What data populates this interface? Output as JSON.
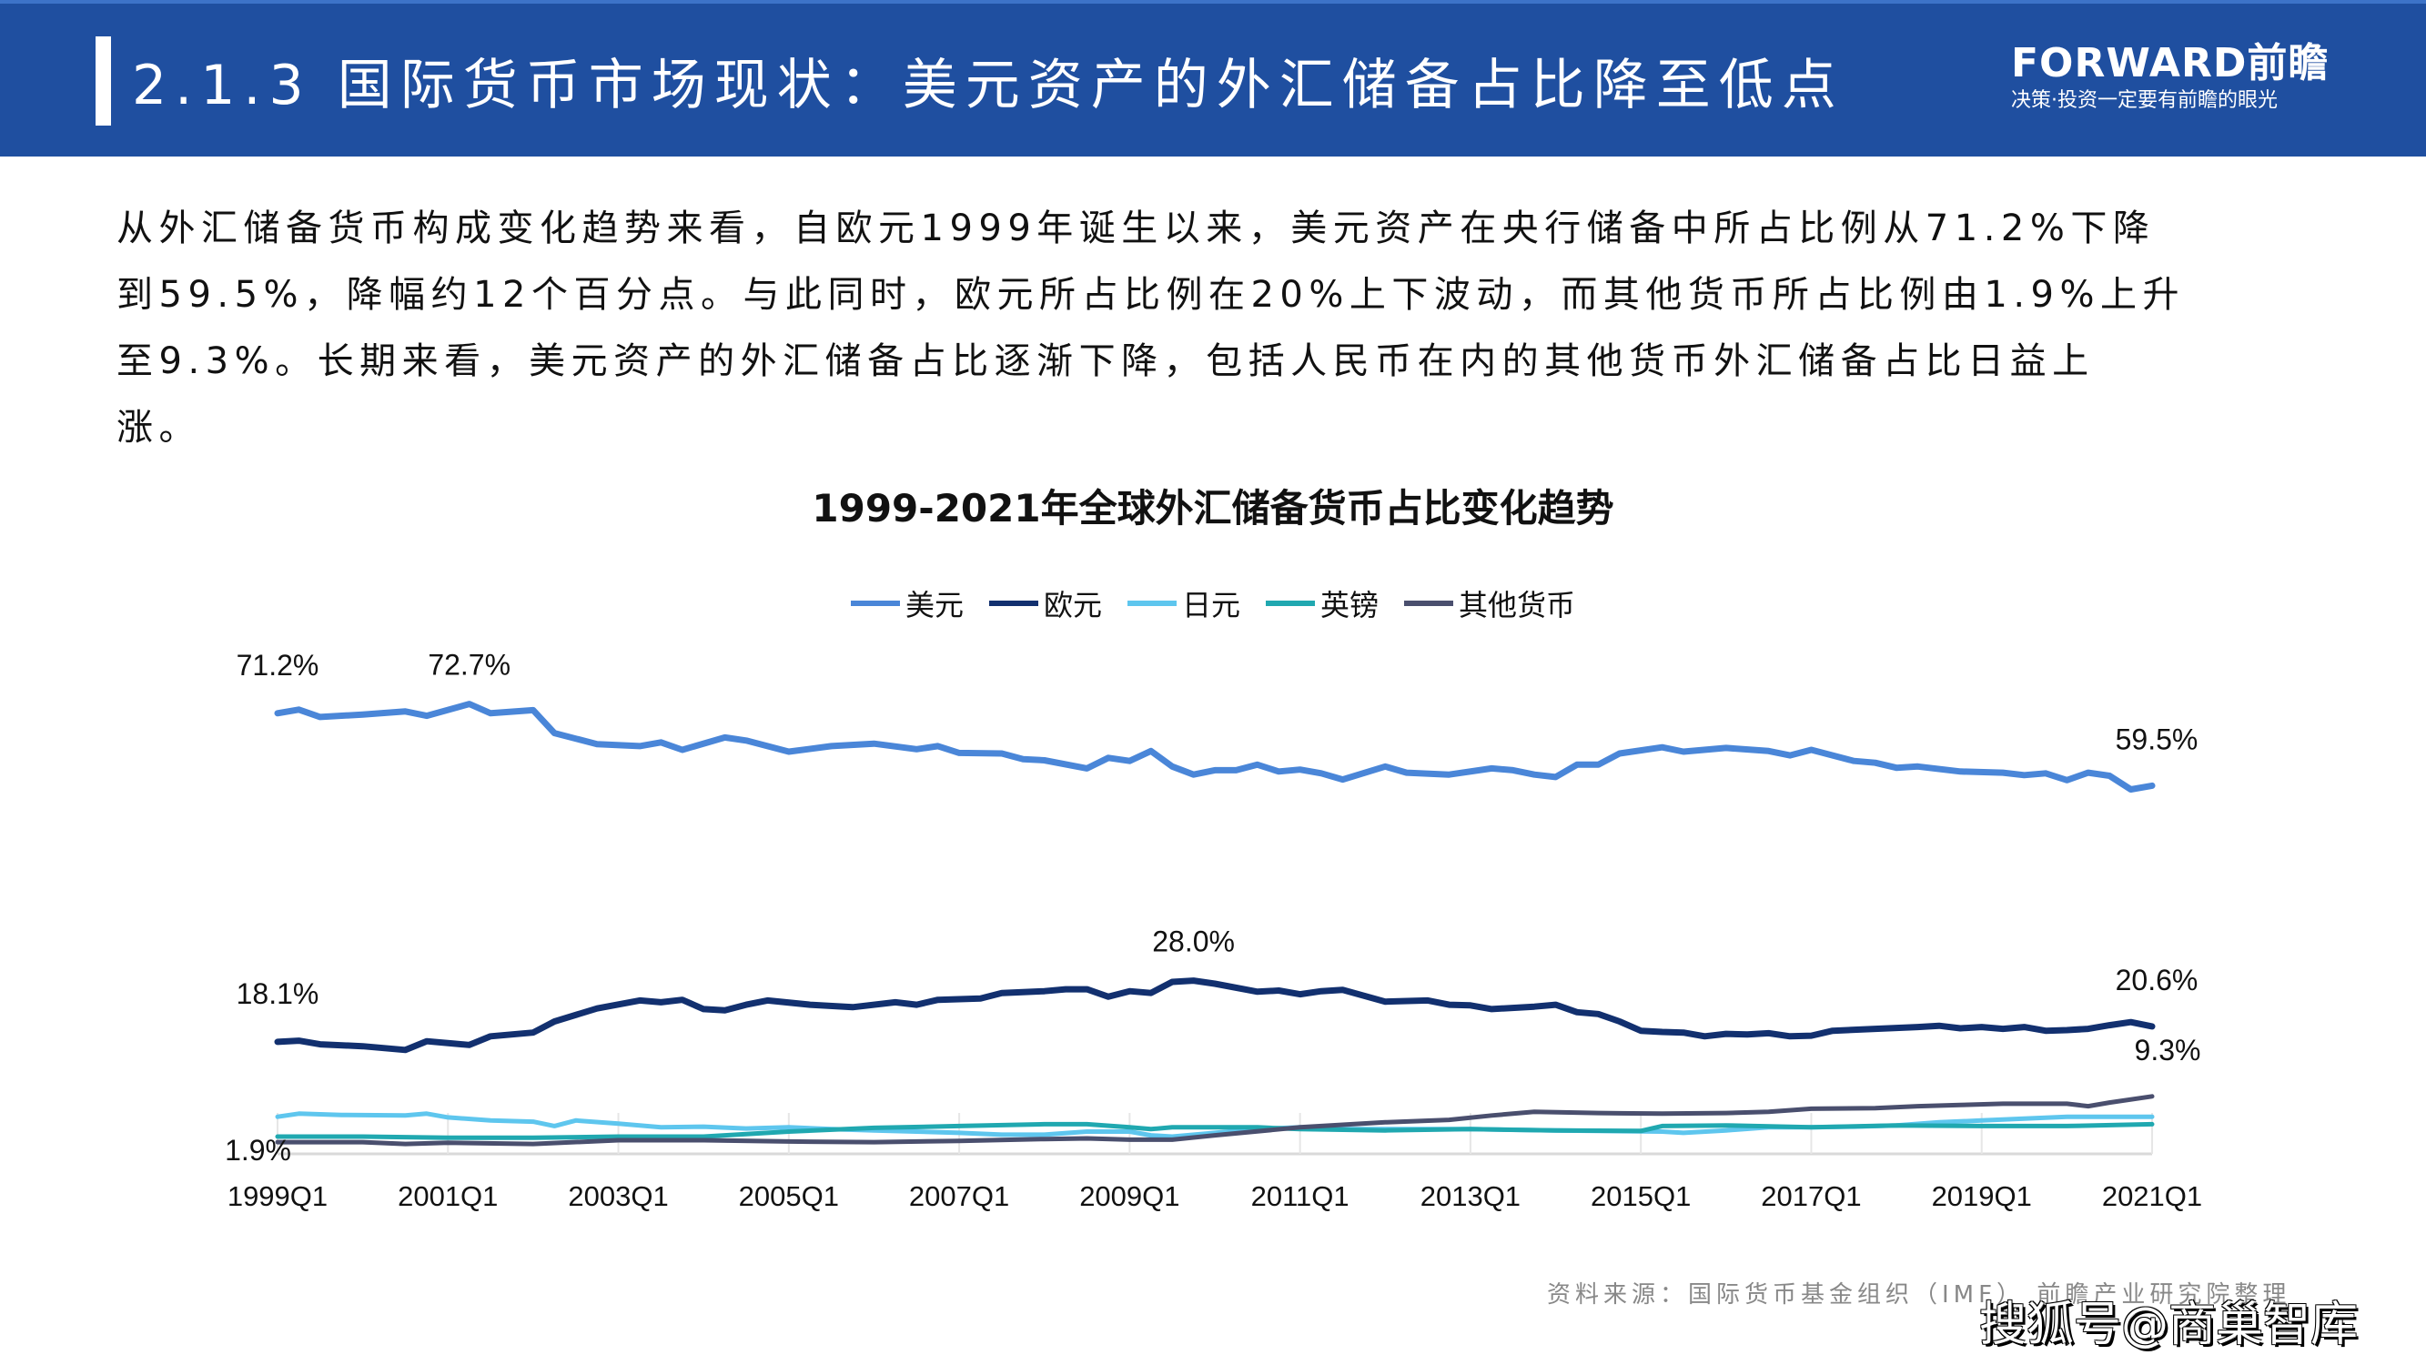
{
  "header": {
    "title": "2.1.3 国际货币市场现状：美元资产的外汇储备占比降至低点",
    "logo_main": "FORWARD前瞻",
    "logo_sub": "决策·投资一定要有前瞻的眼光",
    "color": "#1f4fa0"
  },
  "paragraph": {
    "lines": [
      "从外汇储备货币构成变化趋势来看，自欧元1999年诞生以来，美元资产在央行储备中所占比例从71.2%下降",
      "到59.5%，降幅约12个百分点。与此同时，欧元所占比例在20%上下波动，而其他货币所占比例由1.9%上升",
      "至9.3%。长期来看，美元资产的外汇储备占比逐渐下降，包括人民币在内的其他货币外汇储备占比日益上",
      "涨。"
    ]
  },
  "chart_data": {
    "type": "line",
    "title": "1999-2021年全球外汇储备货币占比变化趋势",
    "xlabel": "",
    "ylabel": "",
    "x_range": [
      "1999Q1",
      "2021Q1"
    ],
    "x_tick_labels": [
      "1999Q1",
      "2001Q1",
      "2003Q1",
      "2005Q1",
      "2007Q1",
      "2009Q1",
      "2011Q1",
      "2013Q1",
      "2015Q1",
      "2017Q1",
      "2019Q1",
      "2021Q1"
    ],
    "ylim": [
      0,
      80
    ],
    "y_axis_shown": false,
    "grid": false,
    "legend_position": "top-center",
    "series": [
      {
        "name": "美元",
        "color": "#4a86d8",
        "points": [
          [
            "1999Q1",
            71.2
          ],
          [
            "1999Q2",
            71.8
          ],
          [
            "1999Q3",
            70.6
          ],
          [
            "2000Q1",
            71.0
          ],
          [
            "2000Q3",
            71.5
          ],
          [
            "2000Q4",
            70.8
          ],
          [
            "2001Q2",
            72.7
          ],
          [
            "2001Q3",
            71.2
          ],
          [
            "2002Q1",
            71.7
          ],
          [
            "2002Q2",
            68.0
          ],
          [
            "2002Q4",
            66.2
          ],
          [
            "2003Q2",
            65.9
          ],
          [
            "2003Q3",
            66.5
          ],
          [
            "2003Q4",
            65.3
          ],
          [
            "2004Q2",
            67.3
          ],
          [
            "2004Q3",
            66.8
          ],
          [
            "2005Q1",
            65.0
          ],
          [
            "2005Q3",
            65.9
          ],
          [
            "2006Q1",
            66.3
          ],
          [
            "2006Q3",
            65.4
          ],
          [
            "2006Q4",
            65.9
          ],
          [
            "2007Q1",
            64.8
          ],
          [
            "2007Q3",
            64.7
          ],
          [
            "2007Q4",
            63.8
          ],
          [
            "2008Q1",
            63.6
          ],
          [
            "2008Q3",
            62.3
          ],
          [
            "2008Q4",
            64.0
          ],
          [
            "2009Q1",
            63.5
          ],
          [
            "2009Q2",
            65.1
          ],
          [
            "2009Q3",
            62.6
          ],
          [
            "2009Q4",
            61.3
          ],
          [
            "2010Q1",
            62.0
          ],
          [
            "2010Q2",
            62.0
          ],
          [
            "2010Q3",
            62.9
          ],
          [
            "2010Q4",
            61.8
          ],
          [
            "2011Q1",
            62.1
          ],
          [
            "2011Q2",
            61.5
          ],
          [
            "2011Q3",
            60.5
          ],
          [
            "2012Q1",
            62.6
          ],
          [
            "2012Q2",
            61.6
          ],
          [
            "2012Q4",
            61.3
          ],
          [
            "2013Q2",
            62.3
          ],
          [
            "2013Q3",
            62.0
          ],
          [
            "2013Q4",
            61.3
          ],
          [
            "2014Q1",
            60.9
          ],
          [
            "2014Q2",
            62.9
          ],
          [
            "2014Q3",
            62.9
          ],
          [
            "2014Q4",
            64.7
          ],
          [
            "2015Q2",
            65.7
          ],
          [
            "2015Q3",
            65.0
          ],
          [
            "2016Q1",
            65.6
          ],
          [
            "2016Q3",
            65.1
          ],
          [
            "2016Q4",
            64.4
          ],
          [
            "2017Q1",
            65.3
          ],
          [
            "2017Q3",
            63.5
          ],
          [
            "2017Q4",
            63.2
          ],
          [
            "2018Q1",
            62.4
          ],
          [
            "2018Q2",
            62.6
          ],
          [
            "2018Q4",
            61.8
          ],
          [
            "2019Q2",
            61.6
          ],
          [
            "2019Q3",
            61.2
          ],
          [
            "2019Q4",
            61.5
          ],
          [
            "2020Q1",
            60.4
          ],
          [
            "2020Q2",
            61.6
          ],
          [
            "2020Q3",
            61.1
          ],
          [
            "2020Q4",
            58.9
          ],
          [
            "2021Q1",
            59.5
          ]
        ]
      },
      {
        "name": "欧元",
        "color": "#12306f",
        "points": [
          [
            "1999Q1",
            18.1
          ],
          [
            "1999Q2",
            18.3
          ],
          [
            "1999Q3",
            17.7
          ],
          [
            "2000Q1",
            17.4
          ],
          [
            "2000Q3",
            16.8
          ],
          [
            "2000Q4",
            18.2
          ],
          [
            "2001Q2",
            17.6
          ],
          [
            "2001Q3",
            19.0
          ],
          [
            "2002Q1",
            19.6
          ],
          [
            "2002Q2",
            21.4
          ],
          [
            "2002Q4",
            23.5
          ],
          [
            "2003Q2",
            24.8
          ],
          [
            "2003Q3",
            24.5
          ],
          [
            "2003Q4",
            24.9
          ],
          [
            "2004Q1",
            23.4
          ],
          [
            "2004Q2",
            23.2
          ],
          [
            "2004Q3",
            24.1
          ],
          [
            "2004Q4",
            24.8
          ],
          [
            "2005Q2",
            24.1
          ],
          [
            "2005Q4",
            23.7
          ],
          [
            "2006Q2",
            24.5
          ],
          [
            "2006Q3",
            24.1
          ],
          [
            "2006Q4",
            24.9
          ],
          [
            "2007Q2",
            25.1
          ],
          [
            "2007Q3",
            26.0
          ],
          [
            "2008Q1",
            26.3
          ],
          [
            "2008Q2",
            26.6
          ],
          [
            "2008Q3",
            26.6
          ],
          [
            "2008Q4",
            25.4
          ],
          [
            "2009Q1",
            26.3
          ],
          [
            "2009Q2",
            26.0
          ],
          [
            "2009Q3",
            27.8
          ],
          [
            "2009Q4",
            28.0
          ],
          [
            "2010Q1",
            27.5
          ],
          [
            "2010Q3",
            26.2
          ],
          [
            "2010Q4",
            26.4
          ],
          [
            "2011Q1",
            25.8
          ],
          [
            "2011Q2",
            26.3
          ],
          [
            "2011Q3",
            26.5
          ],
          [
            "2012Q1",
            24.6
          ],
          [
            "2012Q3",
            24.8
          ],
          [
            "2012Q4",
            24.1
          ],
          [
            "2013Q1",
            24.0
          ],
          [
            "2013Q2",
            23.4
          ],
          [
            "2013Q4",
            23.8
          ],
          [
            "2014Q1",
            24.1
          ],
          [
            "2014Q2",
            22.9
          ],
          [
            "2014Q3",
            22.6
          ],
          [
            "2014Q4",
            21.4
          ],
          [
            "2015Q1",
            19.9
          ],
          [
            "2015Q2",
            19.7
          ],
          [
            "2015Q3",
            19.6
          ],
          [
            "2015Q4",
            19.0
          ],
          [
            "2016Q1",
            19.4
          ],
          [
            "2016Q2",
            19.3
          ],
          [
            "2016Q3",
            19.5
          ],
          [
            "2016Q4",
            19.0
          ],
          [
            "2017Q1",
            19.1
          ],
          [
            "2017Q2",
            19.9
          ],
          [
            "2017Q4",
            20.2
          ],
          [
            "2018Q2",
            20.5
          ],
          [
            "2018Q3",
            20.7
          ],
          [
            "2018Q4",
            20.3
          ],
          [
            "2019Q1",
            20.5
          ],
          [
            "2019Q2",
            20.2
          ],
          [
            "2019Q3",
            20.5
          ],
          [
            "2019Q4",
            19.9
          ],
          [
            "2020Q1",
            20.0
          ],
          [
            "2020Q2",
            20.2
          ],
          [
            "2020Q3",
            20.8
          ],
          [
            "2020Q4",
            21.3
          ],
          [
            "2021Q1",
            20.6
          ]
        ]
      },
      {
        "name": "日元",
        "color": "#5ec6ee",
        "points": [
          [
            "1999Q1",
            6.0
          ],
          [
            "1999Q2",
            6.5
          ],
          [
            "1999Q4",
            6.3
          ],
          [
            "2000Q3",
            6.2
          ],
          [
            "2000Q4",
            6.5
          ],
          [
            "2001Q1",
            5.9
          ],
          [
            "2001Q3",
            5.4
          ],
          [
            "2002Q1",
            5.2
          ],
          [
            "2002Q2",
            4.5
          ],
          [
            "2002Q3",
            5.4
          ],
          [
            "2003Q1",
            4.9
          ],
          [
            "2003Q3",
            4.3
          ],
          [
            "2004Q1",
            4.4
          ],
          [
            "2004Q3",
            4.1
          ],
          [
            "2005Q1",
            4.3
          ],
          [
            "2005Q3",
            4.0
          ],
          [
            "2006Q1",
            3.8
          ],
          [
            "2006Q3",
            3.6
          ],
          [
            "2007Q1",
            3.4
          ],
          [
            "2007Q3",
            3.1
          ],
          [
            "2008Q1",
            3.1
          ],
          [
            "2008Q3",
            3.6
          ],
          [
            "2009Q1",
            3.6
          ],
          [
            "2009Q2",
            3.0
          ],
          [
            "2009Q3",
            2.8
          ],
          [
            "2010Q1",
            3.4
          ],
          [
            "2010Q3",
            4.0
          ],
          [
            "2011Q1",
            4.3
          ],
          [
            "2011Q3",
            4.0
          ],
          [
            "2012Q1",
            4.0
          ],
          [
            "2012Q3",
            4.0
          ],
          [
            "2013Q1",
            4.0
          ],
          [
            "2013Q3",
            3.9
          ],
          [
            "2014Q1",
            3.8
          ],
          [
            "2014Q3",
            3.7
          ],
          [
            "2015Q2",
            3.6
          ],
          [
            "2015Q3",
            3.4
          ],
          [
            "2016Q1",
            3.8
          ],
          [
            "2016Q3",
            4.3
          ],
          [
            "2017Q1",
            4.3
          ],
          [
            "2017Q3",
            4.4
          ],
          [
            "2018Q1",
            4.6
          ],
          [
            "2018Q3",
            5.1
          ],
          [
            "2019Q1",
            5.4
          ],
          [
            "2019Q3",
            5.7
          ],
          [
            "2020Q1",
            6.0
          ],
          [
            "2020Q3",
            6.0
          ],
          [
            "2021Q1",
            6.0
          ]
        ]
      },
      {
        "name": "英镑",
        "color": "#20a8b0",
        "points": [
          [
            "1999Q1",
            2.8
          ],
          [
            "2000Q1",
            2.8
          ],
          [
            "2001Q1",
            2.6
          ],
          [
            "2002Q1",
            2.6
          ],
          [
            "2003Q1",
            2.8
          ],
          [
            "2004Q1",
            2.8
          ],
          [
            "2005Q1",
            3.6
          ],
          [
            "2006Q1",
            4.2
          ],
          [
            "2007Q1",
            4.5
          ],
          [
            "2008Q1",
            4.8
          ],
          [
            "2008Q3",
            4.8
          ],
          [
            "2009Q1",
            4.3
          ],
          [
            "2009Q2",
            4.0
          ],
          [
            "2009Q3",
            4.3
          ],
          [
            "2010Q3",
            4.3
          ],
          [
            "2011Q1",
            4.0
          ],
          [
            "2012Q1",
            3.8
          ],
          [
            "2013Q1",
            4.0
          ],
          [
            "2014Q1",
            3.8
          ],
          [
            "2015Q1",
            3.7
          ],
          [
            "2015Q2",
            4.5
          ],
          [
            "2016Q1",
            4.6
          ],
          [
            "2017Q1",
            4.3
          ],
          [
            "2018Q1",
            4.6
          ],
          [
            "2019Q1",
            4.5
          ],
          [
            "2020Q1",
            4.5
          ],
          [
            "2021Q1",
            4.8
          ]
        ]
      },
      {
        "name": "其他货币",
        "color": "#4a4f6e",
        "points": [
          [
            "1999Q1",
            1.9
          ],
          [
            "2000Q1",
            1.9
          ],
          [
            "2000Q3",
            1.6
          ],
          [
            "2001Q1",
            1.8
          ],
          [
            "2002Q1",
            1.6
          ],
          [
            "2003Q1",
            2.2
          ],
          [
            "2004Q1",
            2.2
          ],
          [
            "2005Q1",
            2.0
          ],
          [
            "2006Q1",
            1.9
          ],
          [
            "2007Q1",
            2.1
          ],
          [
            "2008Q1",
            2.4
          ],
          [
            "2008Q3",
            2.5
          ],
          [
            "2009Q1",
            2.3
          ],
          [
            "2009Q3",
            2.3
          ],
          [
            "2010Q1",
            3.0
          ],
          [
            "2011Q1",
            4.3
          ],
          [
            "2012Q1",
            5.1
          ],
          [
            "2012Q4",
            5.5
          ],
          [
            "2013Q2",
            6.2
          ],
          [
            "2013Q4",
            6.8
          ],
          [
            "2014Q3",
            6.6
          ],
          [
            "2015Q2",
            6.5
          ],
          [
            "2016Q1",
            6.6
          ],
          [
            "2016Q3",
            6.8
          ],
          [
            "2017Q1",
            7.3
          ],
          [
            "2017Q4",
            7.4
          ],
          [
            "2018Q2",
            7.7
          ],
          [
            "2018Q4",
            7.9
          ],
          [
            "2019Q2",
            8.1
          ],
          [
            "2020Q1",
            8.1
          ],
          [
            "2020Q2",
            7.7
          ],
          [
            "2020Q3",
            8.3
          ],
          [
            "2021Q1",
            9.3
          ]
        ]
      }
    ],
    "annotations": [
      {
        "series": "美元",
        "x": "1999Q1",
        "text": "71.2%"
      },
      {
        "series": "美元",
        "x": "2001Q2",
        "text": "72.7%"
      },
      {
        "series": "美元",
        "x": "2021Q1",
        "text": "59.5%"
      },
      {
        "series": "欧元",
        "x": "1999Q1",
        "text": "18.1%"
      },
      {
        "series": "欧元",
        "x": "2009Q4",
        "text": "28.0%"
      },
      {
        "series": "欧元",
        "x": "2021Q1",
        "text": "20.6%"
      },
      {
        "series": "其他货币",
        "x": "2021Q1",
        "text": "9.3%"
      },
      {
        "series": "其他货币",
        "x": "1999Q1",
        "text": "1.9%"
      }
    ]
  },
  "footer": {
    "source": "资料来源：国际货币基金组织（IMF） 前瞻产业研究院整理",
    "watermark": "搜狐号@商巢智库"
  }
}
